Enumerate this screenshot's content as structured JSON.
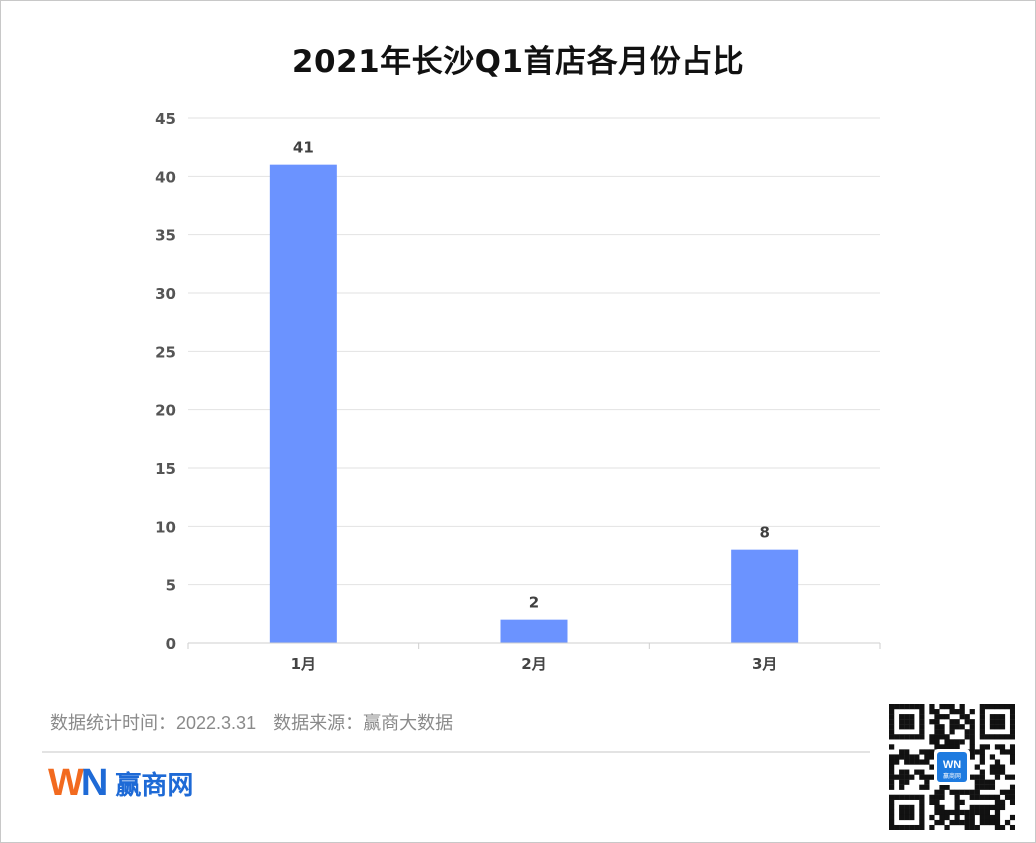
{
  "chart_data": {
    "type": "bar",
    "title": "2021年长沙Q1首店各月份占比",
    "categories": [
      "1月",
      "2月",
      "3月"
    ],
    "values": [
      41,
      2,
      8
    ],
    "data_labels": [
      "41",
      "2",
      "8"
    ],
    "ylim": [
      0,
      45
    ],
    "yticks": [
      "0",
      "5",
      "10",
      "15",
      "20",
      "25",
      "30",
      "35",
      "40",
      "45"
    ],
    "xlabel": "",
    "ylabel": "",
    "grid": true,
    "legend": "none",
    "bar_color": "#6b93ff"
  },
  "footer": {
    "date_note": "数据统计时间：2022.3.31",
    "source_note": "数据来源：赢商大数据"
  },
  "brand": {
    "logo_w": "W",
    "logo_n": "N",
    "name": "赢商网",
    "qr_center_text": "WN",
    "qr_center_sub": "赢商网"
  }
}
